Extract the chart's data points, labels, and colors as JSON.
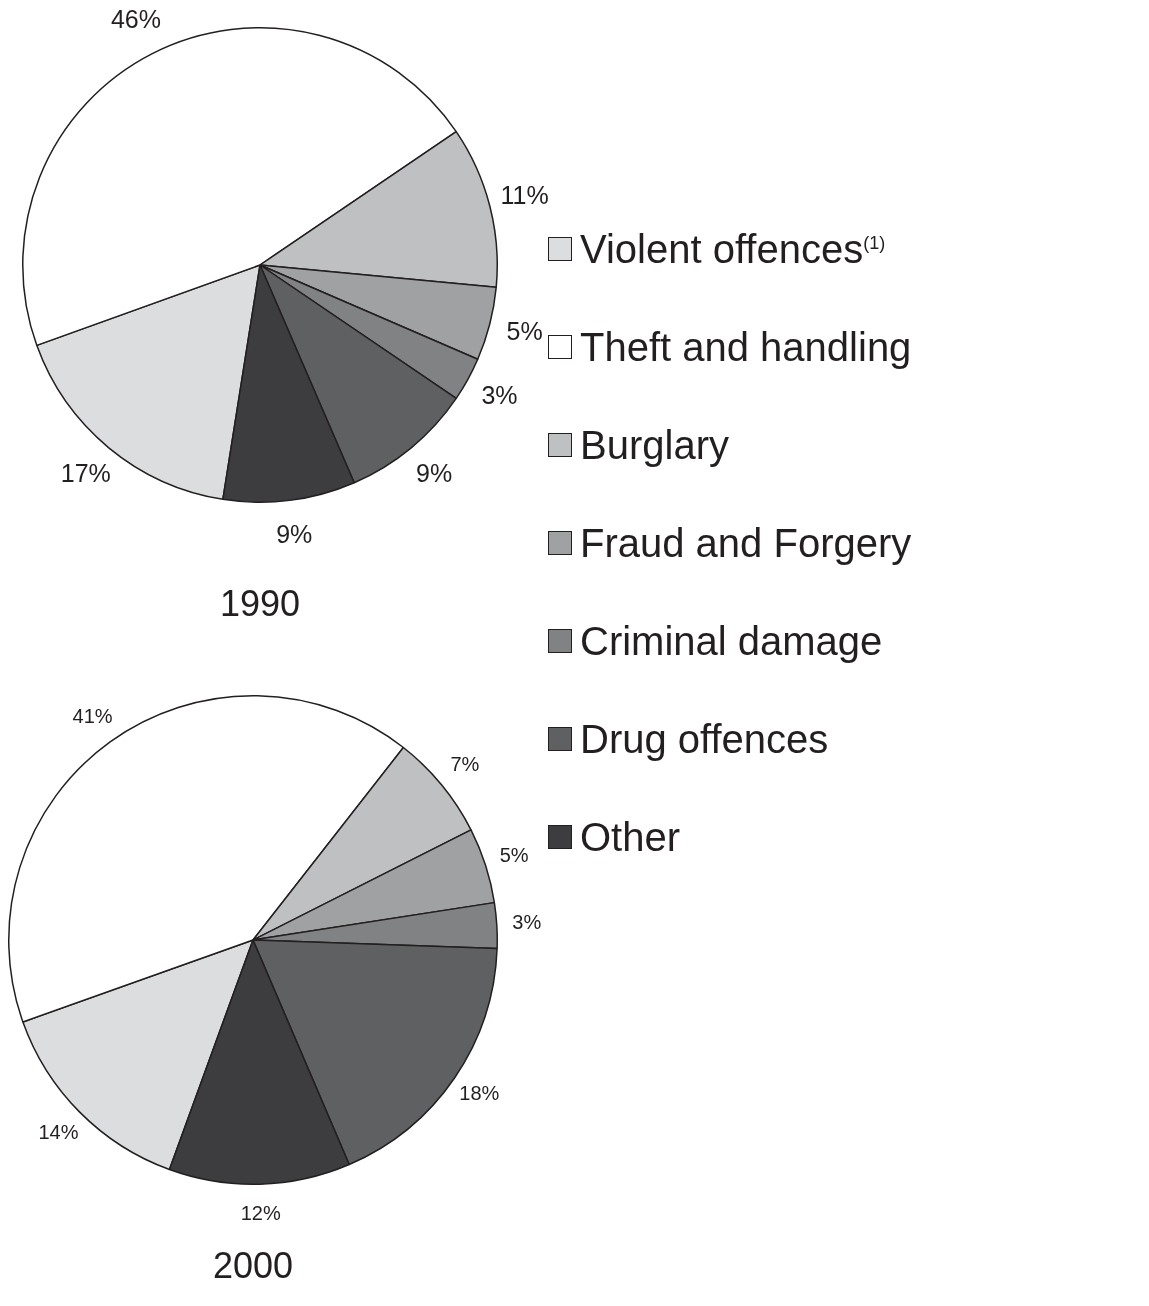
{
  "chart_data": [
    {
      "type": "pie",
      "title": "1990",
      "categories": [
        "Violent offences$^{(1)}$",
        "Theft and handling",
        "Burglary",
        "Fraud and Forgery",
        "Criminal damage",
        "Drug offences",
        "Other"
      ],
      "values": [
        17,
        46,
        11,
        5,
        3,
        9,
        9
      ],
      "colors": [
        "#dcdddf",
        "#ffffff",
        "#bfc0c2",
        "#a0a1a3",
        "#818284",
        "#5f6062",
        "#3d3d3f"
      ],
      "value_labels": [
        "17%",
        "46%",
        "11%",
        "5%",
        "3%",
        "9%",
        "9%"
      ],
      "legend": "right"
    },
    {
      "type": "pie",
      "title": "2000",
      "categories": [
        null,
        null,
        null,
        null,
        null,
        null,
        null
      ],
      "values": [
        14,
        41,
        7,
        5,
        3,
        18,
        12
      ],
      "colors": [
        "#dcdddf",
        "#ffffff",
        "#bfc0c2",
        "#a0a1a3",
        "#818284",
        "#5f6062",
        "#3d3d3f"
      ],
      "value_labels": [
        "14%",
        "41%",
        "7%",
        "5%",
        "3%",
        "18%",
        "12%"
      ]
    }
  ]
}
